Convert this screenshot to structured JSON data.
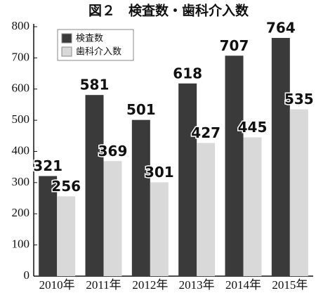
{
  "chart_data": {
    "type": "bar",
    "title": "図２　検査数・歯科介入数",
    "categories": [
      "2010年",
      "2011年",
      "2012年",
      "2013年",
      "2014年",
      "2015年"
    ],
    "series": [
      {
        "name": "検査数",
        "color": "#3a3a3a",
        "values": [
          321,
          581,
          501,
          618,
          707,
          764
        ]
      },
      {
        "name": "歯科介入数",
        "color": "#d9d9d9",
        "values": [
          256,
          369,
          301,
          427,
          445,
          535
        ]
      }
    ],
    "ylim": [
      0,
      800
    ],
    "yticks": [
      0,
      100,
      200,
      300,
      400,
      500,
      600,
      700,
      800
    ],
    "grid": false,
    "legend": "top-left"
  }
}
